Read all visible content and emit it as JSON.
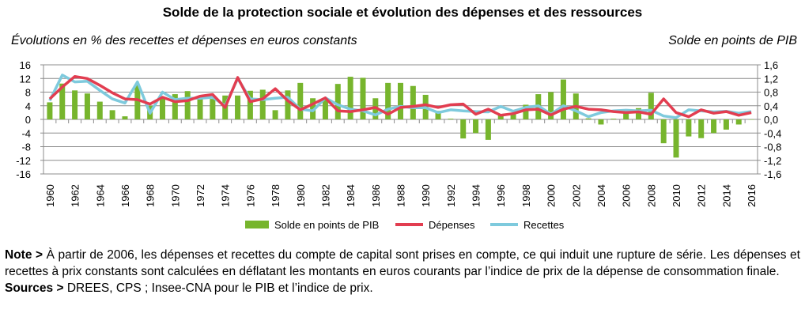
{
  "chart_data": {
    "type": "bar+line",
    "title": "Solde de la protection sociale et évolution des dépenses et des ressources",
    "ylabel_left": "Évolutions en % des recettes et dépenses en euros constants",
    "ylabel_right": "Solde en points de PIB",
    "ylim_left": [
      -16,
      16
    ],
    "ylim_right": [
      -1.6,
      1.6
    ],
    "yticks_left": [
      "16",
      "12",
      "8",
      "4",
      "0",
      "-4",
      "-8",
      "-12",
      "-16"
    ],
    "yticks_right": [
      "1,6",
      "1,2",
      "0,8",
      "0,4",
      "0,0",
      "-0,4",
      "-0,8",
      "-1,2",
      "-1,6"
    ],
    "grid": true,
    "legend_position": "bottom",
    "x": [
      1960,
      1961,
      1962,
      1963,
      1964,
      1965,
      1966,
      1967,
      1968,
      1969,
      1970,
      1971,
      1972,
      1973,
      1974,
      1975,
      1976,
      1977,
      1978,
      1979,
      1980,
      1981,
      1982,
      1983,
      1984,
      1985,
      1986,
      1987,
      1988,
      1989,
      1990,
      1991,
      1992,
      1993,
      1994,
      1995,
      1996,
      1997,
      1998,
      1999,
      2000,
      2001,
      2002,
      2003,
      2004,
      2005,
      2006,
      2007,
      2008,
      2009,
      2010,
      2011,
      2012,
      2013,
      2014,
      2015,
      2016
    ],
    "series": [
      {
        "name": "Solde en points de PIB",
        "kind": "bar",
        "axis": "right",
        "color": "#77b52d",
        "values": [
          0.5,
          1.05,
          0.85,
          0.76,
          0.52,
          0.27,
          0.09,
          1.0,
          0.4,
          0.65,
          0.74,
          0.83,
          0.6,
          0.6,
          0.7,
          0.7,
          0.84,
          0.87,
          0.27,
          0.85,
          1.07,
          0.62,
          0.6,
          1.04,
          1.25,
          1.22,
          0.62,
          1.07,
          1.07,
          0.98,
          0.72,
          0.25,
          0.02,
          -0.56,
          -0.4,
          -0.6,
          0.15,
          0.15,
          0.43,
          0.74,
          0.8,
          1.17,
          0.76,
          0.03,
          -0.15,
          0.02,
          0.22,
          0.33,
          0.78,
          -0.7,
          -1.12,
          -0.5,
          -0.55,
          -0.4,
          -0.3,
          -0.15,
          -0.01
        ]
      },
      {
        "name": "Dépenses",
        "kind": "line",
        "axis": "left",
        "color": "#e23d50",
        "values": [
          6,
          9.5,
          12.6,
          12,
          10,
          7.8,
          6,
          5.8,
          4.5,
          6.5,
          5.2,
          5.5,
          6.8,
          7.3,
          3.5,
          12.3,
          5.2,
          6,
          9,
          5.5,
          2.8,
          4.5,
          6.3,
          2.5,
          2.3,
          2.8,
          3.5,
          1.5,
          3.5,
          3.8,
          4.3,
          3.5,
          4.3,
          4.5,
          1.5,
          3,
          1.2,
          1.7,
          2.8,
          3,
          1.3,
          3,
          3.8,
          3,
          2.8,
          2.3,
          2,
          2.2,
          1.5,
          6,
          2,
          0.8,
          2.8,
          1.8,
          2.3,
          1.2,
          2
        ]
      },
      {
        "name": "Recettes",
        "kind": "line",
        "axis": "left",
        "color": "#7ecadd",
        "values": [
          5.5,
          13,
          11,
          11.2,
          8.5,
          6,
          4.8,
          11,
          1.8,
          8,
          5.8,
          6.2,
          6.2,
          6.5,
          4,
          12,
          6,
          5.8,
          6.2,
          6.5,
          3,
          2.5,
          6.3,
          4.3,
          3,
          2.5,
          1.3,
          3,
          3.8,
          3.4,
          3.4,
          2,
          2.8,
          2.5,
          2.3,
          2.2,
          3.8,
          2.4,
          3.5,
          4,
          1.5,
          4,
          2.5,
          0.8,
          2,
          2.5,
          2.7,
          2.5,
          2.7,
          1,
          0.5,
          2.8,
          2.5,
          2.2,
          2.4,
          1.8,
          2.3
        ]
      }
    ]
  },
  "note": {
    "label": "Note >",
    "text": " À partir de 2006, les dépenses et recettes du compte de capital sont prises en compte, ce qui induit une rupture de série. Les dépenses et recettes à prix constants sont calculées en déflatant les montants en euros courants par l’indice de prix de la dépense de consommation finale.",
    "sources_label": "Sources >",
    "sources_text": " DREES, CPS ; Insee-CNA pour le PIB et l’indice de prix."
  }
}
